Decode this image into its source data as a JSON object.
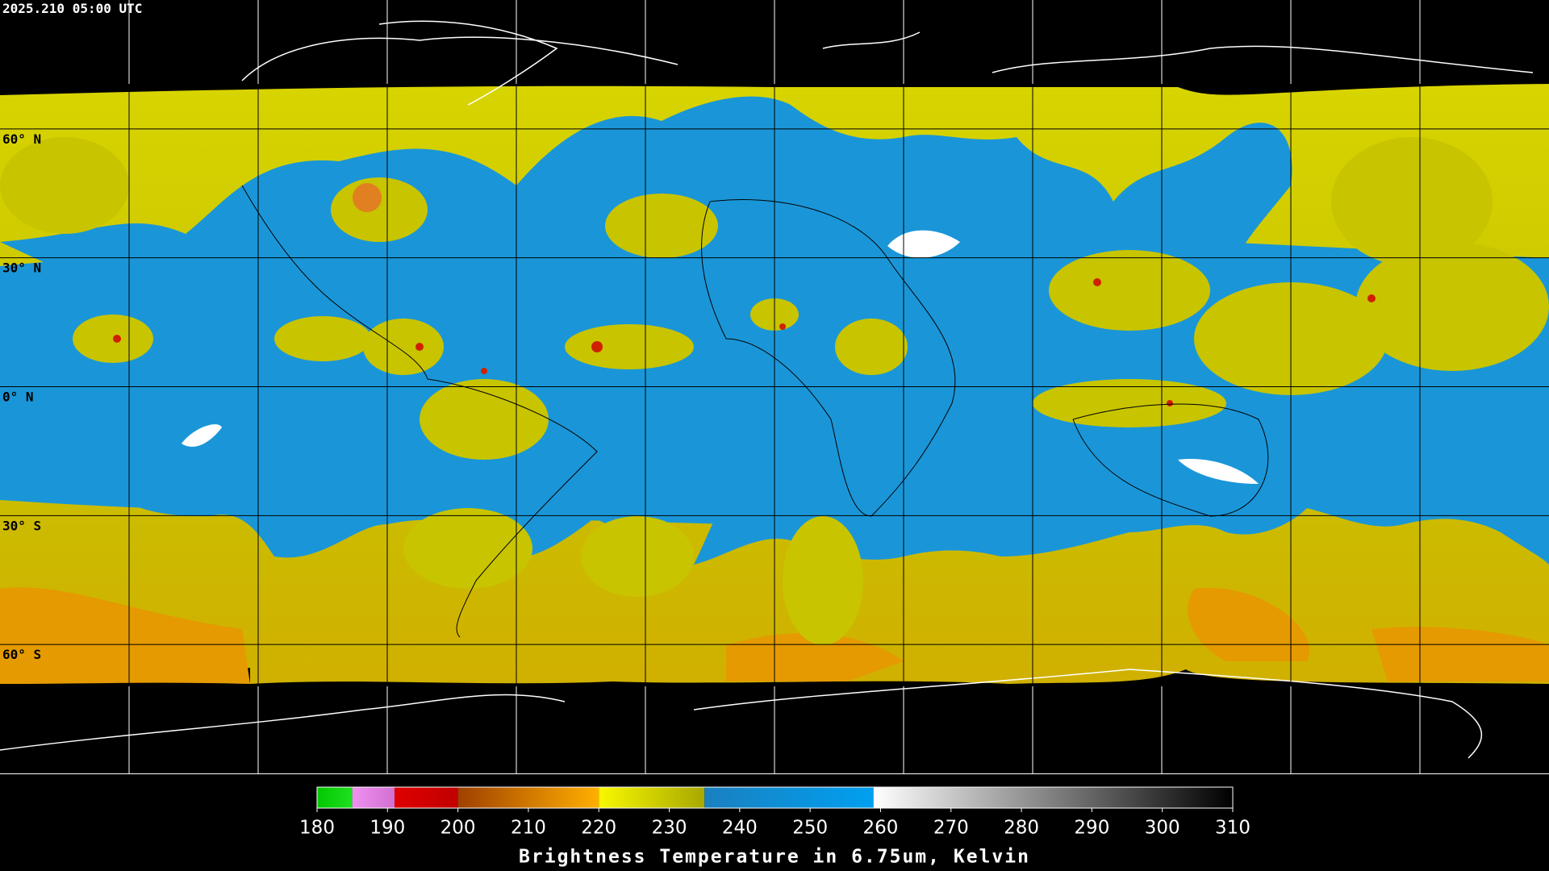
{
  "header": {
    "timestamp": "2025.210 05:00 UTC"
  },
  "map": {
    "lat_labels": [
      {
        "value": 60,
        "label": "60° N"
      },
      {
        "value": 30,
        "label": "30° N"
      },
      {
        "value": 0,
        "label": "0° N"
      },
      {
        "value": -30,
        "label": "30° S"
      },
      {
        "value": -60,
        "label": "60° S"
      }
    ],
    "grid_color": "#000000"
  },
  "colorbar": {
    "title": "Brightness Temperature in 6.75um, Kelvin",
    "range": [
      180,
      310
    ],
    "ticks": [
      180,
      190,
      200,
      210,
      220,
      230,
      240,
      250,
      260,
      270,
      280,
      290,
      300,
      310
    ],
    "segments": [
      {
        "from": 180,
        "to": 185,
        "colors": [
          "#00c800",
          "#20e020"
        ]
      },
      {
        "from": 185,
        "to": 191,
        "colors": [
          "#f090f0",
          "#d070d0"
        ]
      },
      {
        "from": 191,
        "to": 200,
        "colors": [
          "#e00000",
          "#c00000"
        ]
      },
      {
        "from": 200,
        "to": 220,
        "colors": [
          "#a04000",
          "#ffb000"
        ]
      },
      {
        "from": 220,
        "to": 235,
        "colors": [
          "#f8f800",
          "#a8a800"
        ]
      },
      {
        "from": 235,
        "to": 259,
        "colors": [
          "#1a80c0",
          "#00a0f0"
        ]
      },
      {
        "from": 259,
        "to": 310,
        "colors": [
          "#ffffff",
          "#000000"
        ]
      }
    ]
  }
}
